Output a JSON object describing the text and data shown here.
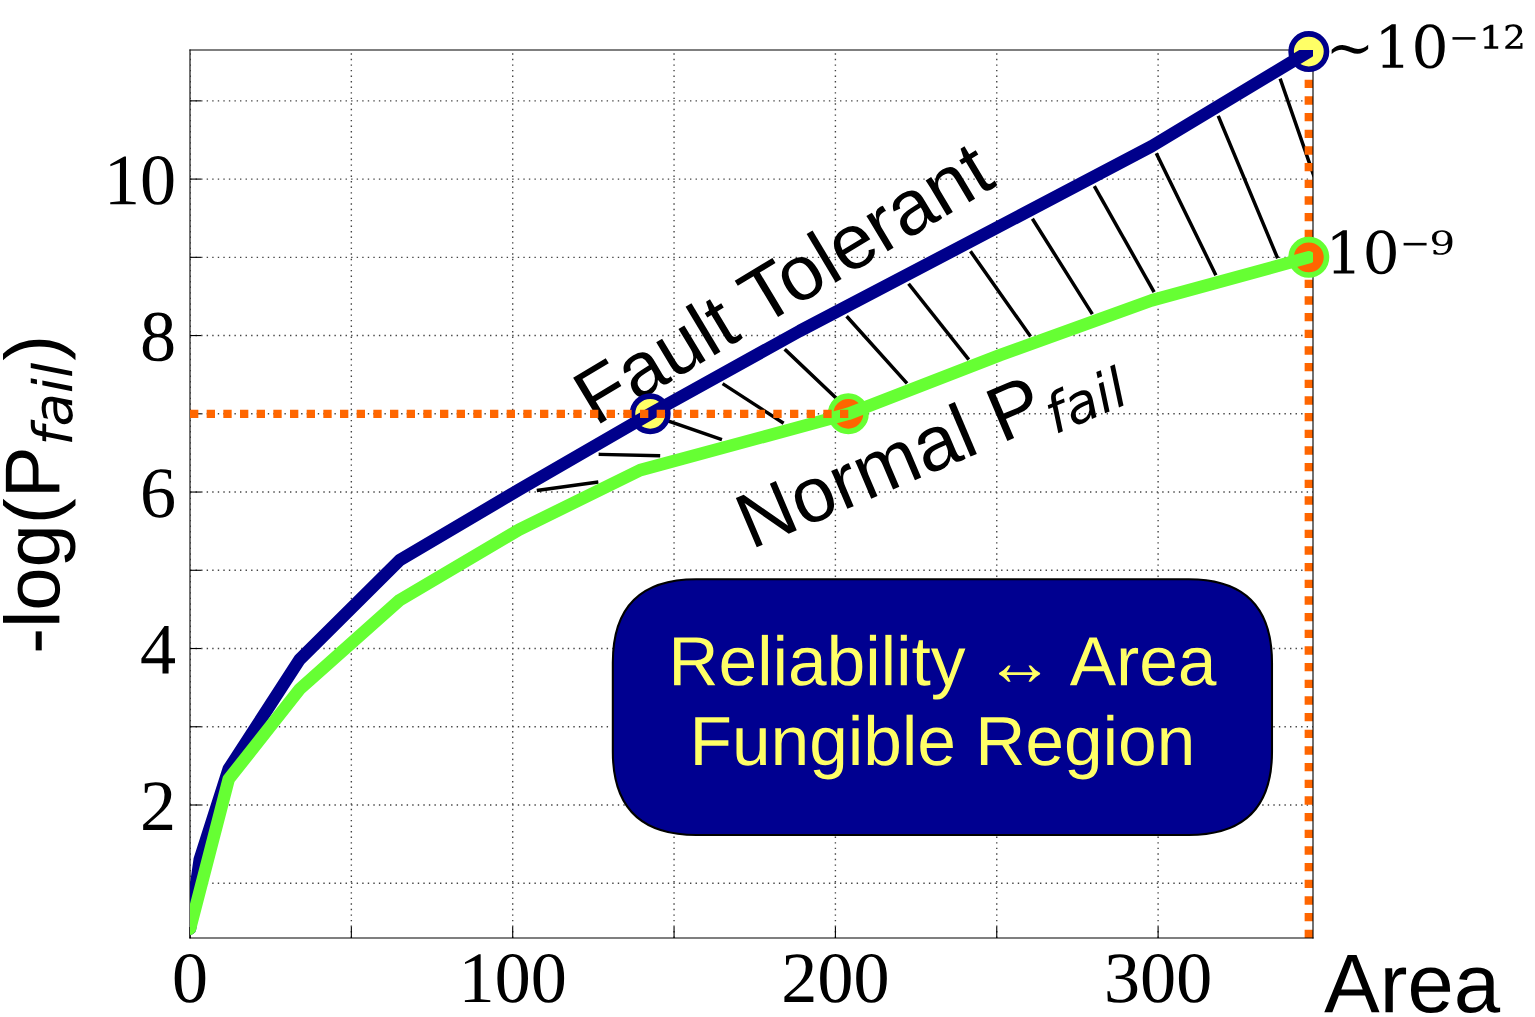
{
  "chart_data": {
    "type": "line",
    "xlabel": "Area",
    "ylabel": "-log(P$_{fail}$)",
    "xlim": [
      0,
      348
    ],
    "ylim": [
      0.3,
      11.65
    ],
    "xticks": [
      0,
      {
        "value": 50,
        "label": null
      },
      100,
      {
        "value": 150,
        "label": null
      },
      200,
      {
        "value": 250,
        "label": null
      },
      300
    ],
    "yticks": [
      {
        "value": 1,
        "label": null
      },
      2,
      {
        "value": 3,
        "label": null
      },
      4,
      {
        "value": 5,
        "label": null
      },
      6,
      {
        "value": 7,
        "label": null
      },
      8,
      {
        "value": 9,
        "label": null
      },
      10,
      {
        "value": 11,
        "label": null
      }
    ],
    "grid": true,
    "legend": false,
    "line_style": "solid",
    "series": [
      {
        "name": "Fault Tolerant",
        "color": "#00008b",
        "x": [
          0,
          3,
          12,
          34,
          65,
          102,
          142.6,
          189,
          251,
          298,
          346.7
        ],
        "values": [
          0.42,
          1.3,
          2.46,
          3.86,
          5.13,
          6.03,
          7.0,
          8.06,
          9.4,
          10.42,
          11.63
        ]
      },
      {
        "name": "Normal P$_{fail}$",
        "color": "#66ff33",
        "x": [
          0,
          12,
          34,
          65,
          102,
          139.5,
          204,
          251,
          298,
          346.7
        ],
        "values": [
          0.42,
          2.33,
          3.48,
          4.62,
          5.52,
          6.28,
          7.0,
          7.75,
          8.45,
          9.0
        ]
      },
      {
        "color": "#ff6600",
        "line_style": "dotted",
        "x": [
          0,
          204
        ],
        "values": [
          7.0,
          7.0
        ]
      },
      {
        "type": "scatter",
        "color": "#ffff66",
        "x": [
          142.6,
          346.7
        ],
        "values": [
          7.0,
          11.63
        ]
      },
      {
        "type": "scatter",
        "color": "#ff6600",
        "x": [
          204,
          346.7
        ],
        "values": [
          7.0,
          9.0
        ]
      }
    ],
    "ref_lines": [
      {
        "axis": "x",
        "value": 346.7,
        "color": "#ff6600",
        "line_style": "dotted"
      }
    ],
    "annotations": [
      {
        "text": "~10⁻¹²",
        "x": 346.7,
        "y": 11.63
      },
      {
        "text": "10⁻⁹",
        "x": 346.7,
        "y": 9.0
      },
      "Reliability ↔ Area\nFungible Region"
    ]
  }
}
